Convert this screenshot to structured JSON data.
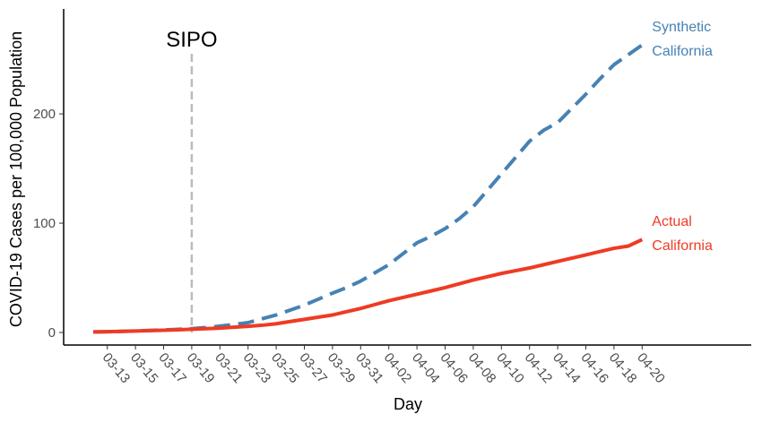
{
  "chart_data": {
    "type": "line",
    "x_label": "Day",
    "y_label": "COVID-19 Cases per 100,000 Population",
    "categories": [
      null,
      "03-13",
      null,
      "03-15",
      null,
      "03-17",
      null,
      "03-19",
      null,
      "03-21",
      null,
      "03-23",
      null,
      "03-25",
      null,
      "03-27",
      null,
      "03-29",
      null,
      "03-31",
      null,
      "04-02",
      null,
      "04-04",
      null,
      "04-06",
      null,
      "04-08",
      null,
      "04-10",
      null,
      "04-12",
      null,
      "04-14",
      null,
      "04-16",
      null,
      "04-18",
      null,
      "04-20"
    ],
    "series": [
      {
        "name": "Synthetic California",
        "color": "#4682b4",
        "dashed": true,
        "values": [
          0.5,
          0.7,
          1,
          1.4,
          1.8,
          2.3,
          2.8,
          3.5,
          4.5,
          5.8,
          7.3,
          9,
          12.5,
          16,
          20.5,
          25,
          30.5,
          36,
          41,
          47,
          54.5,
          62,
          72,
          82,
          88,
          95,
          104,
          115,
          130,
          145,
          160,
          175,
          185,
          192,
          205,
          218,
          232,
          245,
          254,
          263
        ]
      },
      {
        "name": "Actual California",
        "color": "#ee3b24",
        "dashed": false,
        "values": [
          0.5,
          0.7,
          1,
          1.3,
          1.7,
          2,
          2.4,
          3,
          3.5,
          4,
          4.8,
          5.6,
          6.6,
          8,
          10,
          12,
          14,
          16,
          19,
          22,
          25.5,
          29,
          32,
          35,
          38,
          41,
          44.5,
          48,
          51,
          54,
          56.5,
          59,
          62,
          65,
          68,
          71,
          74,
          77,
          79,
          85
        ]
      }
    ],
    "annotations": [
      {
        "text": "SIPO",
        "x_index": 7
      }
    ],
    "ylim": [
      -11.5,
      296
    ],
    "yticks": [
      0,
      100,
      200
    ],
    "grid": false
  }
}
